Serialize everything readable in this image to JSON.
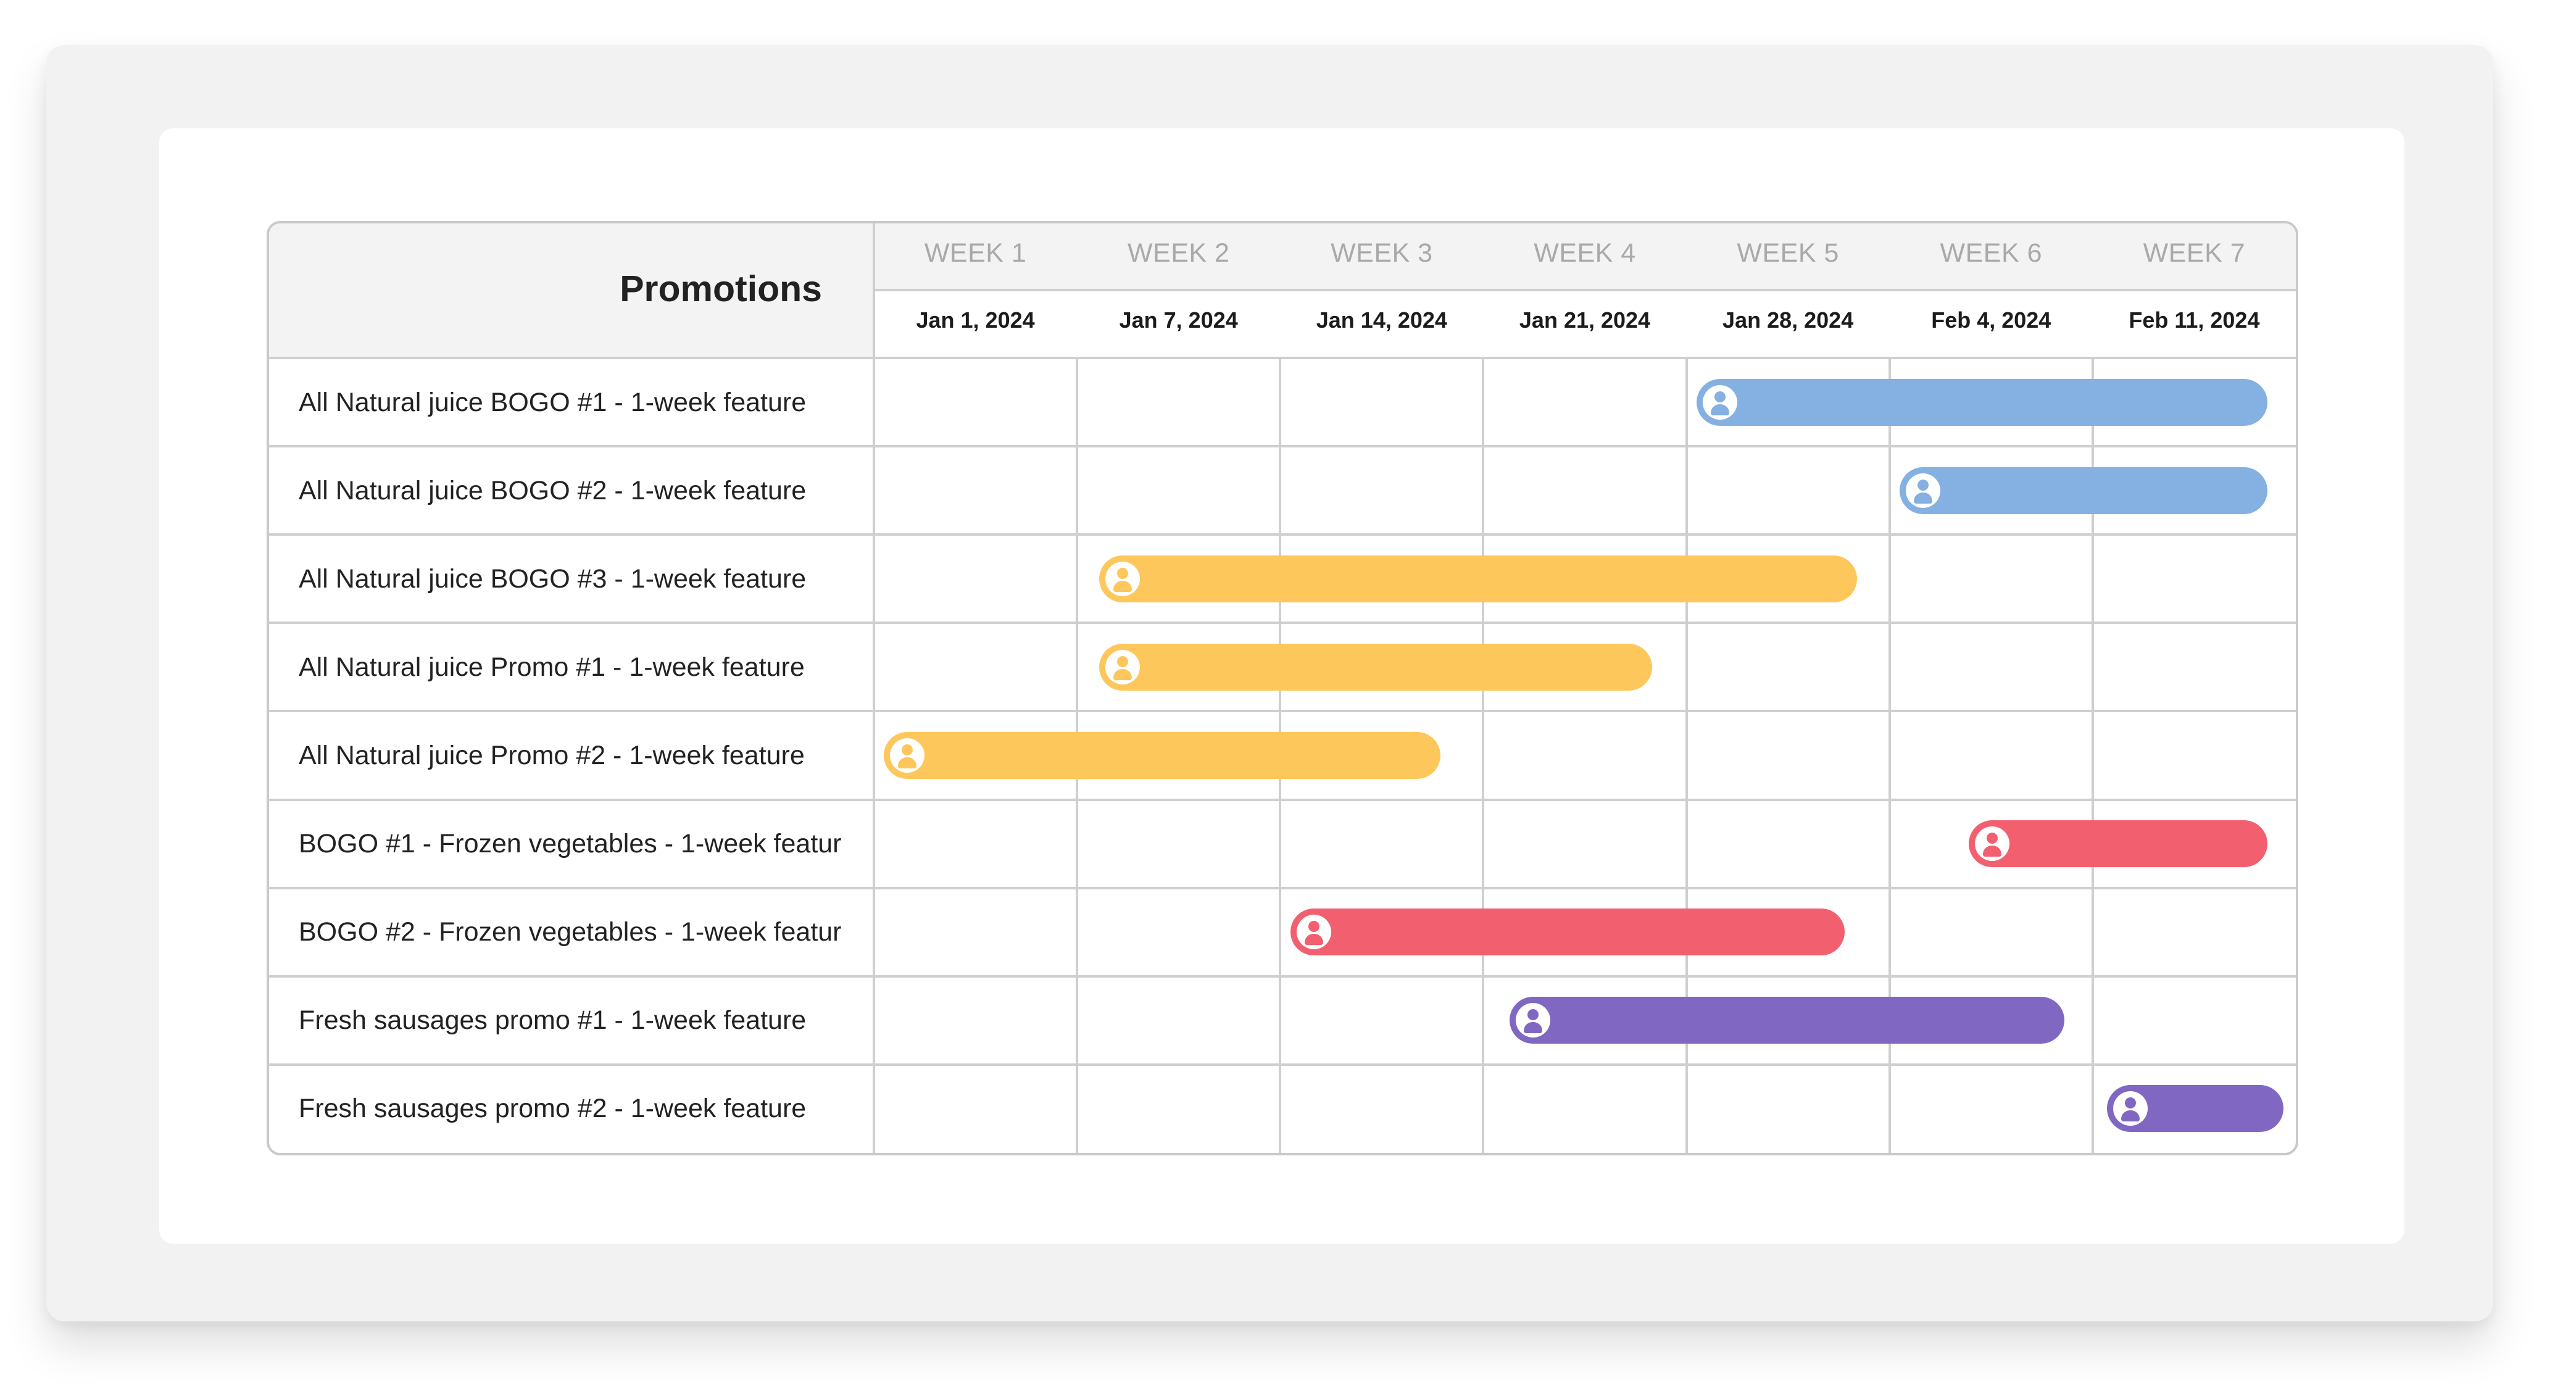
{
  "chart_data": {
    "type": "gantt",
    "title": "Promotions",
    "weeks": [
      "WEEK 1",
      "WEEK 2",
      "WEEK 3",
      "WEEK 4",
      "WEEK 5",
      "WEEK 6",
      "WEEK 7"
    ],
    "dates": [
      "Jan 1, 2024",
      "Jan 7, 2024",
      "Jan 14, 2024",
      "Jan 21, 2024",
      "Jan 28, 2024",
      "Feb 4, 2024",
      "Feb 11, 2024"
    ],
    "tasks": [
      {
        "label": "All Natural juice BOGO #1 - 1-week feature",
        "start_week": 4.05,
        "end_week": 6.86,
        "color": "#85b0e2"
      },
      {
        "label": "All Natural juice BOGO #2 - 1-week feature",
        "start_week": 5.05,
        "end_week": 6.86,
        "color": "#85b0e2"
      },
      {
        "label": "All Natural juice BOGO #3 - 1-week feature",
        "start_week": 1.11,
        "end_week": 4.84,
        "color": "#fec75b"
      },
      {
        "label": "All Natural juice Promo #1 - 1-week feature",
        "start_week": 1.11,
        "end_week": 3.83,
        "color": "#fec75b"
      },
      {
        "label": "All Natural juice Promo #2 - 1-week feature",
        "start_week": 0.05,
        "end_week": 2.79,
        "color": "#fec75b"
      },
      {
        "label": "BOGO #1 - Frozen vegetables - 1-week featur",
        "start_week": 5.39,
        "end_week": 6.86,
        "color": "#f2606f"
      },
      {
        "label": "BOGO #2 - Frozen vegetables - 1-week featur",
        "start_week": 2.05,
        "end_week": 4.78,
        "color": "#f2606f"
      },
      {
        "label": "Fresh sausages promo #1 - 1-week feature",
        "start_week": 3.13,
        "end_week": 5.86,
        "color": "#8068c2"
      },
      {
        "label": "Fresh sausages promo #2 - 1-week feature",
        "start_week": 6.07,
        "end_week": 6.94,
        "color": "#8068c2"
      }
    ]
  },
  "icons": {
    "bar_avatar": "user-avatar-icon"
  },
  "colors": {
    "border": "#c9c9c9",
    "grid": "#cfcfcf",
    "header_bg": "#f3f3f3"
  }
}
